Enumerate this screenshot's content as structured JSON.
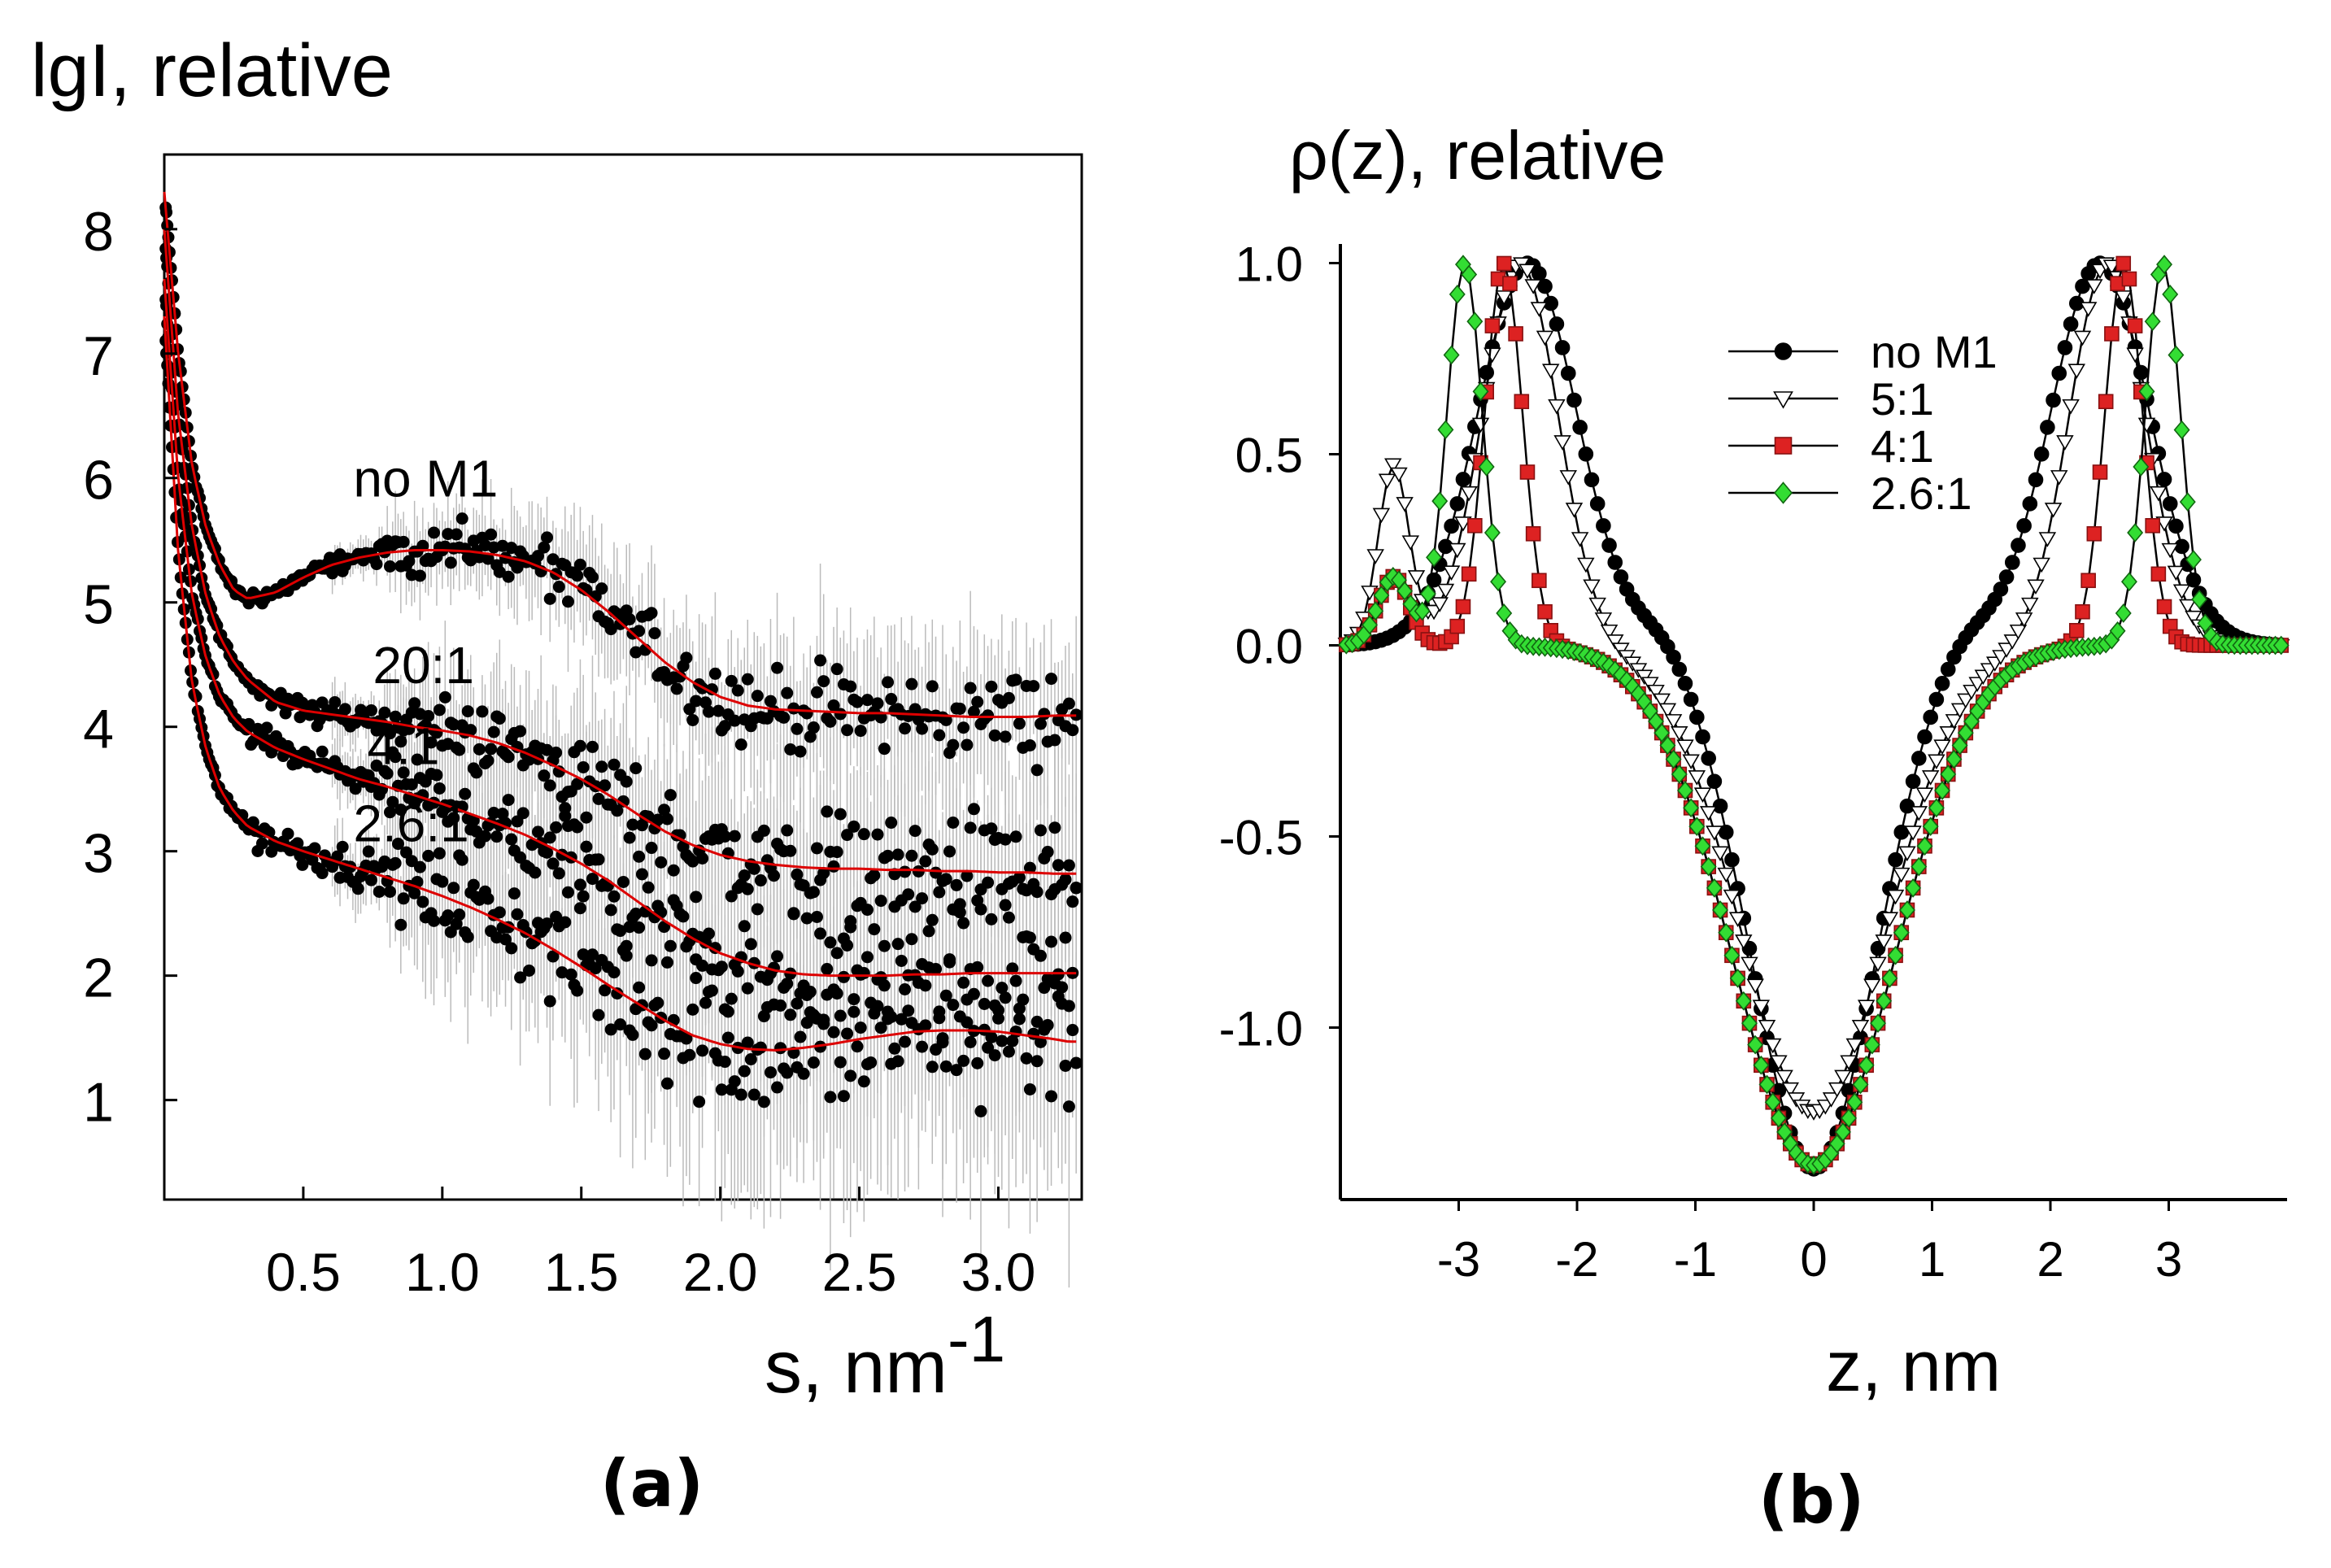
{
  "figure": {
    "panel_a_label": "(a)",
    "panel_b_label": "(b)"
  },
  "chart_data": [
    {
      "type": "scatter",
      "panel": "a",
      "title": "",
      "ylabel": "lgI, relative",
      "xlabel_main": "s, nm",
      "xlabel_sup": "-1",
      "xlim": [
        0,
        3.3
      ],
      "ylim": [
        0.2,
        8.6
      ],
      "x_ticks": [
        0.5,
        1.0,
        1.5,
        2.0,
        2.5,
        3.0
      ],
      "x_tick_labels": [
        "0.5",
        "1.0",
        "1.5",
        "2.0",
        "2.5",
        "3.0"
      ],
      "y_ticks": [
        1,
        2,
        3,
        4,
        5,
        6,
        7,
        8
      ],
      "y_tick_labels": [
        "1",
        "2",
        "3",
        "4",
        "5",
        "6",
        "7",
        "8"
      ],
      "grid": false,
      "marker_color": "#000000",
      "fit_color": "#dd0000",
      "errorbar_color": "#bbbbbb",
      "series": [
        {
          "name": "no M1",
          "label_pos": [
            0.68,
            5.85
          ],
          "fit": {
            "x": [
              0.0,
              0.05,
              0.1,
              0.15,
              0.2,
              0.25,
              0.3,
              0.4,
              0.5,
              0.6,
              0.7,
              0.8,
              0.9,
              1.0,
              1.1,
              1.2,
              1.3,
              1.4,
              1.5,
              1.6,
              1.7,
              1.8,
              1.9,
              2.0,
              2.1,
              2.2,
              2.3,
              2.4,
              2.5,
              2.6,
              2.7,
              2.8,
              2.9,
              3.0,
              3.1,
              3.2,
              3.25
            ],
            "y": [
              8.3,
              7.0,
              6.1,
              5.6,
              5.3,
              5.1,
              5.03,
              5.08,
              5.2,
              5.3,
              5.36,
              5.4,
              5.42,
              5.42,
              5.41,
              5.38,
              5.33,
              5.24,
              5.1,
              4.92,
              4.72,
              4.52,
              4.36,
              4.24,
              4.17,
              4.14,
              4.13,
              4.12,
              4.11,
              4.11,
              4.1,
              4.09,
              4.08,
              4.08,
              4.08,
              4.09,
              4.09
            ]
          },
          "noise": 0.18
        },
        {
          "name": "20:1",
          "label_pos": [
            0.75,
            4.35
          ],
          "fit": {
            "x": [
              0.0,
              0.05,
              0.1,
              0.15,
              0.2,
              0.25,
              0.3,
              0.4,
              0.5,
              0.6,
              0.7,
              0.8,
              0.9,
              1.0,
              1.1,
              1.2,
              1.3,
              1.4,
              1.5,
              1.6,
              1.7,
              1.8,
              1.9,
              2.0,
              2.1,
              2.2,
              2.3,
              2.4,
              2.5,
              2.6,
              2.7,
              2.8,
              2.9,
              3.0,
              3.1,
              3.2,
              3.25
            ],
            "y": [
              8.0,
              6.5,
              5.6,
              5.05,
              4.72,
              4.52,
              4.38,
              4.2,
              4.13,
              4.1,
              4.07,
              4.04,
              4.0,
              3.97,
              3.93,
              3.87,
              3.79,
              3.69,
              3.58,
              3.45,
              3.3,
              3.16,
              3.05,
              2.97,
              2.92,
              2.89,
              2.87,
              2.86,
              2.86,
              2.85,
              2.85,
              2.84,
              2.84,
              2.83,
              2.83,
              2.82,
              2.82
            ]
          },
          "noise": 0.25
        },
        {
          "name": "4:1",
          "label_pos": [
            0.73,
            3.7
          ],
          "fit": {
            "x": [
              0.0,
              0.05,
              0.1,
              0.15,
              0.2,
              0.25,
              0.3,
              0.4,
              0.5,
              0.6,
              0.7,
              0.8,
              0.9,
              1.0,
              1.1,
              1.2,
              1.3,
              1.4,
              1.5,
              1.6,
              1.7,
              1.8,
              1.9,
              2.0,
              2.1,
              2.2,
              2.3,
              2.4,
              2.5,
              2.6,
              2.7,
              2.8,
              2.9,
              3.0,
              3.1,
              3.2,
              3.25
            ],
            "y": [
              7.6,
              6.0,
              5.05,
              4.55,
              4.25,
              4.07,
              3.96,
              3.83,
              3.74,
              3.66,
              3.58,
              3.52,
              3.45,
              3.38,
              3.3,
              3.22,
              3.13,
              3.02,
              2.9,
              2.76,
              2.6,
              2.44,
              2.3,
              2.18,
              2.1,
              2.04,
              2.01,
              2.0,
              2.0,
              2.0,
              2.01,
              2.01,
              2.02,
              2.02,
              2.02,
              2.02,
              2.02
            ]
          },
          "noise": 0.3
        },
        {
          "name": "2.6:1",
          "label_pos": [
            0.68,
            3.08
          ],
          "fit": {
            "x": [
              0.0,
              0.05,
              0.1,
              0.15,
              0.2,
              0.25,
              0.3,
              0.4,
              0.5,
              0.6,
              0.7,
              0.8,
              0.9,
              1.0,
              1.1,
              1.2,
              1.3,
              1.4,
              1.5,
              1.6,
              1.7,
              1.8,
              1.9,
              2.0,
              2.1,
              2.2,
              2.3,
              2.4,
              2.5,
              2.6,
              2.7,
              2.8,
              2.9,
              3.0,
              3.1,
              3.2,
              3.25
            ],
            "y": [
              7.3,
              5.4,
              4.35,
              3.82,
              3.5,
              3.32,
              3.2,
              3.08,
              3.0,
              2.93,
              2.86,
              2.79,
              2.72,
              2.64,
              2.55,
              2.45,
              2.34,
              2.21,
              2.07,
              1.92,
              1.78,
              1.64,
              1.52,
              1.45,
              1.41,
              1.4,
              1.42,
              1.45,
              1.49,
              1.52,
              1.55,
              1.56,
              1.56,
              1.55,
              1.52,
              1.49,
              1.47
            ]
          },
          "noise": 0.33
        }
      ]
    },
    {
      "type": "line",
      "panel": "b",
      "title": "",
      "ylabel": "ρ(z), relative",
      "xlabel": "z, nm",
      "xlim": [
        -4,
        4
      ],
      "ylim": [
        -1.45,
        1.05
      ],
      "x_ticks": [
        -3,
        -2,
        -1,
        0,
        1,
        2,
        3
      ],
      "x_tick_labels": [
        "-3",
        "-2",
        "-1",
        "0",
        "1",
        "2",
        "3"
      ],
      "y_ticks": [
        1.0,
        0.5,
        0.0,
        -0.5,
        -1.0
      ],
      "y_tick_labels": [
        "1.0",
        "0.5",
        "0.0",
        "-0.5",
        "-1.0"
      ],
      "grid": false,
      "legend_position": "top-right",
      "series": [
        {
          "name": "no M1",
          "marker": "circle",
          "fill": "#000000",
          "stroke": "#000000",
          "components": [
            {
              "type": "gauss",
              "amp": 1.0,
              "center": -2.42,
              "sigma": 0.42
            },
            {
              "type": "gauss",
              "amp": 1.0,
              "center": 2.42,
              "sigma": 0.42
            },
            {
              "type": "gauss",
              "amp": -1.37,
              "center": 0.0,
              "sigma": 0.52
            },
            {
              "type": "gauss",
              "amp": 0.06,
              "center": -1.25,
              "sigma": 0.25
            },
            {
              "type": "gauss",
              "amp": 0.06,
              "center": 1.25,
              "sigma": 0.25
            }
          ]
        },
        {
          "name": "5:1",
          "marker": "triangle-down",
          "fill": "#ffffff",
          "stroke": "#000000",
          "components": [
            {
              "type": "gauss",
              "amp": 1.0,
              "center": -2.48,
              "sigma": 0.32
            },
            {
              "type": "gauss",
              "amp": 1.0,
              "center": 2.48,
              "sigma": 0.32
            },
            {
              "type": "gauss",
              "amp": 0.47,
              "center": -3.55,
              "sigma": 0.13
            },
            {
              "type": "gauss",
              "amp": -1.22,
              "center": 0.0,
              "sigma": 0.62
            }
          ]
        },
        {
          "name": "4:1",
          "marker": "square",
          "fill": "#dd2222",
          "stroke": "#881111",
          "components": [
            {
              "type": "gauss",
              "amp": 1.0,
              "center": -2.62,
              "sigma": 0.16
            },
            {
              "type": "gauss",
              "amp": 1.0,
              "center": 2.62,
              "sigma": 0.16
            },
            {
              "type": "gauss",
              "amp": 0.18,
              "center": -3.55,
              "sigma": 0.13
            },
            {
              "type": "gauss",
              "amp": -1.36,
              "center": 0.0,
              "sigma": 0.68
            }
          ]
        },
        {
          "name": "2.6:1",
          "marker": "diamond",
          "fill": "#33dd33",
          "stroke": "#116611",
          "components": [
            {
              "type": "gauss",
              "amp": 1.0,
              "center": -2.95,
              "sigma": 0.15
            },
            {
              "type": "gauss",
              "amp": 1.0,
              "center": 2.95,
              "sigma": 0.15
            },
            {
              "type": "gauss",
              "amp": 0.18,
              "center": -3.55,
              "sigma": 0.13
            },
            {
              "type": "gauss",
              "amp": -1.36,
              "center": 0.0,
              "sigma": 0.68
            }
          ]
        }
      ]
    }
  ]
}
